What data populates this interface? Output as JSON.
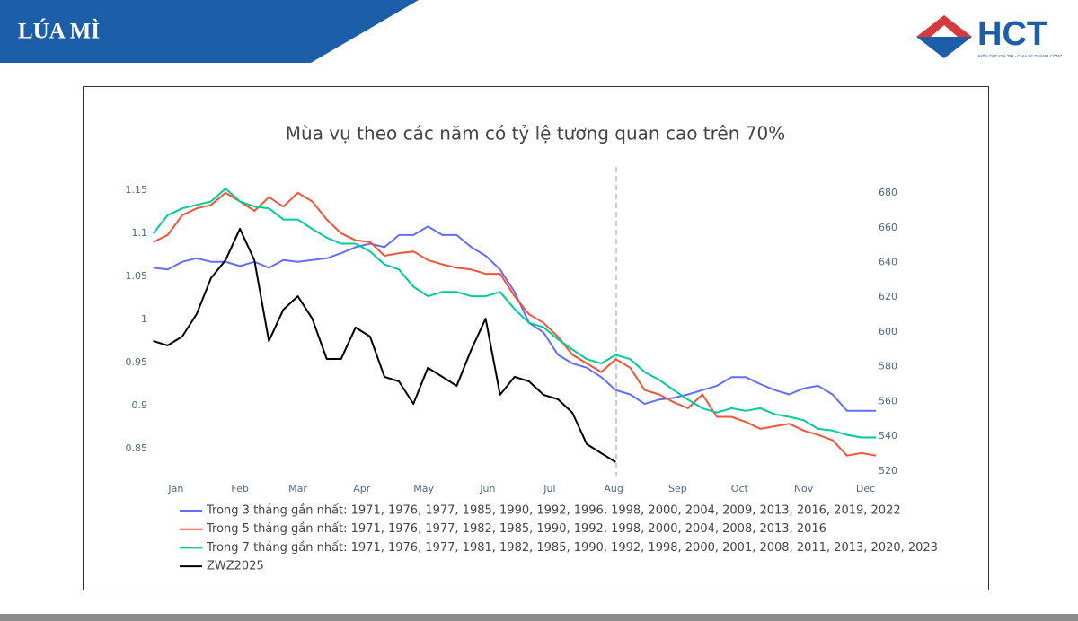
{
  "header": {
    "title": "LÚA MÌ",
    "logo_text": "HCT",
    "logo_tagline": "KIẾN TẠO GIÁ TRỊ - CHIA SẺ THÀNH CÔNG"
  },
  "chart_data": {
    "type": "line",
    "title": "Mùa vụ theo các năm có tỷ lệ tương quan cao trên 70%",
    "x": [
      -10,
      -3,
      4,
      11,
      18,
      25,
      32,
      39,
      46,
      53,
      60,
      67,
      74,
      81,
      88,
      95,
      102,
      109,
      116,
      123,
      130,
      137,
      144,
      151,
      158,
      165,
      172,
      179,
      186,
      193,
      200,
      207,
      214,
      221,
      228,
      235,
      242,
      249,
      256,
      263,
      270,
      277,
      284,
      291,
      298,
      305,
      312,
      319,
      326,
      333,
      340
    ],
    "xlim": [
      -12,
      340
    ],
    "xticks": [
      {
        "value": 1,
        "label": "Jan"
      },
      {
        "value": 32,
        "label": "Feb"
      },
      {
        "value": 60,
        "label": "Mar"
      },
      {
        "value": 91,
        "label": "Apr"
      },
      {
        "value": 121,
        "label": "May"
      },
      {
        "value": 152,
        "label": "Jun"
      },
      {
        "value": 182,
        "label": "Jul"
      },
      {
        "value": 213,
        "label": "Aug"
      },
      {
        "value": 244,
        "label": "Sep"
      },
      {
        "value": 274,
        "label": "Oct"
      },
      {
        "value": 305,
        "label": "Nov"
      },
      {
        "value": 335,
        "label": "Dec"
      }
    ],
    "ylim": [
      0.82,
      1.165
    ],
    "yticks": [
      0.85,
      0.9,
      0.95,
      1,
      1.05,
      1.1,
      1.15
    ],
    "y2lim": [
      518,
      689
    ],
    "y2ticks": [
      520,
      540,
      560,
      580,
      600,
      620,
      640,
      660,
      680
    ],
    "grid": false,
    "legend": "bottom",
    "series": [
      {
        "name": "Trong 3 tháng gần nhất: 1971, 1976, 1977, 1985, 1990, 1992, 1996, 1998, 2000, 2004, 2009, 2013, 2016, 2019, 2022",
        "color": "#636efa",
        "values": [
          1.06,
          1.058,
          1.067,
          1.071,
          1.067,
          1.067,
          1.062,
          1.067,
          1.06,
          1.069,
          1.067,
          1.069,
          1.071,
          1.077,
          1.084,
          1.088,
          1.084,
          1.098,
          1.098,
          1.108,
          1.098,
          1.098,
          1.084,
          1.074,
          1.058,
          1.032,
          0.996,
          0.985,
          0.959,
          0.949,
          0.944,
          0.933,
          0.918,
          0.913,
          0.902,
          0.907,
          0.909,
          0.913,
          0.918,
          0.923,
          0.933,
          0.933,
          0.925,
          0.918,
          0.913,
          0.92,
          0.923,
          0.913,
          0.894,
          0.894,
          0.894
        ]
      },
      {
        "name": "Trong 5 tháng gần nhất: 1971, 1976, 1977, 1982, 1985, 1990, 1992, 1998, 2000, 2004, 2008, 2013, 2016",
        "color": "#ef553b",
        "values": [
          1.09,
          1.098,
          1.121,
          1.129,
          1.133,
          1.147,
          1.137,
          1.126,
          1.142,
          1.131,
          1.147,
          1.137,
          1.116,
          1.1,
          1.092,
          1.09,
          1.074,
          1.077,
          1.079,
          1.069,
          1.064,
          1.06,
          1.058,
          1.053,
          1.053,
          1.027,
          1.006,
          0.996,
          0.98,
          0.959,
          0.949,
          0.939,
          0.954,
          0.944,
          0.918,
          0.913,
          0.904,
          0.897,
          0.913,
          0.887,
          0.887,
          0.881,
          0.873,
          0.876,
          0.879,
          0.871,
          0.866,
          0.86,
          0.842,
          0.845,
          0.842
        ]
      },
      {
        "name": "Trong 7 tháng gần nhất: 1971, 1976, 1977, 1981, 1982, 1985, 1990, 1992, 1998, 2000, 2001, 2008, 2011, 2013, 2020, 2023",
        "color": "#00cc96",
        "values": [
          1.1,
          1.121,
          1.129,
          1.133,
          1.137,
          1.152,
          1.137,
          1.131,
          1.129,
          1.116,
          1.116,
          1.105,
          1.095,
          1.088,
          1.088,
          1.079,
          1.064,
          1.058,
          1.038,
          1.027,
          1.032,
          1.032,
          1.027,
          1.027,
          1.032,
          1.012,
          0.996,
          0.991,
          0.977,
          0.965,
          0.954,
          0.949,
          0.959,
          0.954,
          0.939,
          0.93,
          0.918,
          0.907,
          0.897,
          0.892,
          0.897,
          0.894,
          0.897,
          0.89,
          0.887,
          0.883,
          0.873,
          0.871,
          0.866,
          0.863,
          0.863
        ]
      },
      {
        "name": "ZWZ2025",
        "color": "#000000",
        "axis": "y2",
        "values": [
          594.8,
          592.3,
          597.4,
          610.3,
          631,
          641.3,
          659.4,
          641.3,
          594.8,
          612.9,
          620.6,
          607.7,
          584.5,
          584.5,
          602.6,
          597.4,
          574.2,
          571.6,
          558.7,
          579.4,
          574.2,
          569,
          589.7,
          607.7,
          563.9,
          574.2,
          571.6,
          563.9,
          561.3,
          553.5,
          535.5,
          530.3,
          525.2,
          null,
          null,
          null,
          null,
          null,
          null,
          null,
          null,
          null,
          null,
          null,
          null,
          null,
          null,
          null,
          null,
          null,
          null
        ]
      }
    ]
  }
}
